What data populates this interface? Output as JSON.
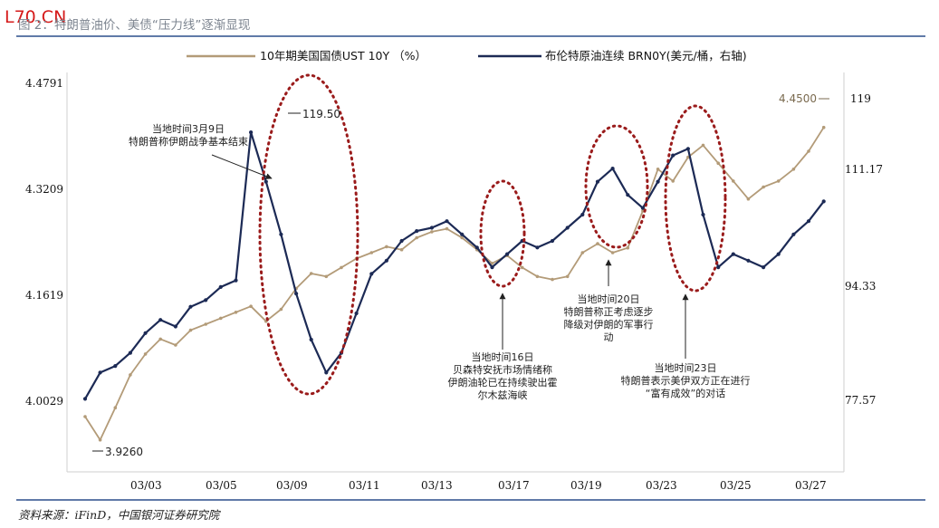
{
  "figure": {
    "watermark": "L70.CN",
    "title": "图 2：特朗普油价、美债“压力线”逐渐显现",
    "source": "资料来源：iFinD，中国银河证券研究院"
  },
  "chart_data": {
    "type": "line",
    "legend": [
      {
        "name": "10年期美国国债UST 10Y （%）",
        "color": "#b39b78"
      },
      {
        "name": "布伦特原油连续 BRN0Y(美元/桶，右轴)",
        "color": "#1c2a55"
      }
    ],
    "categories": [
      "03/03",
      "03/05",
      "03/09",
      "03/11",
      "03/13",
      "03/17",
      "03/19",
      "03/23",
      "03/25",
      "03/27"
    ],
    "yleft_ticks": [
      "4.4791",
      "4.3209",
      "4.1619",
      "4.0029"
    ],
    "yright_ticks": [
      "119",
      "111.17",
      "94.33",
      "77.57"
    ],
    "ylim_left": [
      3.88,
      4.53
    ],
    "ylim_right": [
      68.6,
      127.5
    ],
    "series": [
      {
        "name": "10年期美国国债UST 10Y （%）",
        "axis": "left",
        "color": "#b39b78",
        "x": [
          0.0,
          0.2,
          0.4,
          0.6,
          0.8,
          1.0,
          1.2,
          1.4,
          1.6,
          1.8,
          2.0,
          2.2,
          2.4,
          2.6,
          2.8,
          3.0,
          3.2,
          3.4,
          3.6,
          3.8,
          4.0,
          4.2,
          4.4,
          4.6,
          4.8,
          5.0,
          5.2,
          5.4,
          5.6,
          5.8,
          6.0,
          6.2,
          6.4,
          6.6,
          6.8,
          7.0,
          7.2,
          7.4,
          7.6,
          7.8,
          8.0,
          8.2,
          8.4,
          8.6,
          8.8,
          9.0,
          9.2,
          9.4,
          9.6,
          9.8
        ],
        "values": [
          3.965,
          3.926,
          3.98,
          4.035,
          4.07,
          4.095,
          4.085,
          4.11,
          4.12,
          4.13,
          4.14,
          4.15,
          4.125,
          4.145,
          4.18,
          4.205,
          4.2,
          4.215,
          4.23,
          4.24,
          4.25,
          4.245,
          4.265,
          4.275,
          4.28,
          4.265,
          4.245,
          4.222,
          4.235,
          4.215,
          4.2,
          4.195,
          4.2,
          4.24,
          4.255,
          4.24,
          4.248,
          4.31,
          4.38,
          4.36,
          4.4,
          4.42,
          4.39,
          4.36,
          4.33,
          4.35,
          4.36,
          4.38,
          4.41,
          4.45
        ]
      },
      {
        "name": "布伦特原油连续 BRN0Y(美元/桶，右轴)",
        "axis": "right",
        "color": "#1c2a55",
        "x": [
          0.0,
          0.2,
          0.4,
          0.6,
          0.8,
          1.0,
          1.2,
          1.4,
          1.6,
          1.8,
          2.0,
          2.2,
          2.4,
          2.6,
          2.8,
          3.0,
          3.2,
          3.4,
          3.6,
          3.8,
          4.0,
          4.2,
          4.4,
          4.6,
          4.8,
          5.0,
          5.2,
          5.4,
          5.6,
          5.8,
          6.0,
          6.2,
          6.4,
          6.6,
          6.8,
          7.0,
          7.2,
          7.4,
          7.6,
          7.8,
          8.0,
          8.2,
          8.4,
          8.6,
          8.8,
          9.0,
          9.2,
          9.4,
          9.6,
          9.8
        ],
        "values": [
          79,
          83,
          84,
          86,
          89,
          91,
          90,
          93,
          94,
          96,
          97,
          119.5,
          112,
          104,
          95,
          88,
          83,
          86,
          92,
          98,
          100,
          103,
          104.5,
          105,
          106,
          104,
          102,
          99,
          101,
          103,
          102,
          103,
          105,
          107,
          112,
          114,
          110,
          108,
          112,
          116,
          117,
          107,
          99,
          101,
          100,
          99,
          101,
          104,
          106,
          109
        ]
      }
    ],
    "value_labels": [
      "119.50",
      "3.9260",
      "4.4500"
    ],
    "annotations": [
      "当地时间3月9日\n特朗普称伊朗战争基本结束",
      "当地时间16日\n贝森特安抚市场情绪称\n伊朗油轮已在持续驶出霍\n尔木兹海峡",
      "当地时间20日\n特朗普称正考虑逐步\n降级对伊朗的军事行\n动",
      "当地时间23日\n特朗普表示美伊双方正在进行\n“富有成效”的对话"
    ]
  }
}
